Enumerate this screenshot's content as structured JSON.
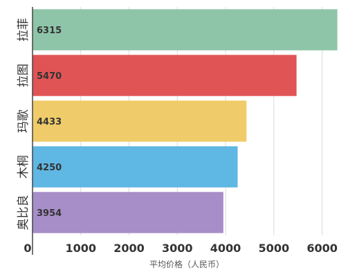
{
  "chart_data": {
    "type": "bar",
    "orientation": "horizontal",
    "categories": [
      "拉菲",
      "拉图",
      "玛歌",
      "木桐",
      "奥比良"
    ],
    "values": [
      6315,
      5470,
      4433,
      4250,
      3954
    ],
    "value_labels": [
      "6315",
      "5470",
      "4433",
      "4250",
      "3954"
    ],
    "colors": [
      "#8ec5a9",
      "#e05456",
      "#efcc69",
      "#5fb7e3",
      "#a78ec8"
    ],
    "xlabel": "平均价格（人民币）",
    "ylabel": "",
    "xlim": [
      0,
      6350
    ],
    "xticks": [
      0,
      1000,
      2000,
      3000,
      4000,
      5000,
      6000
    ],
    "xtick_labels": [
      "0",
      "1000",
      "2000",
      "3000",
      "4000",
      "5000",
      "6000"
    ],
    "grid": true,
    "legend": "none"
  }
}
